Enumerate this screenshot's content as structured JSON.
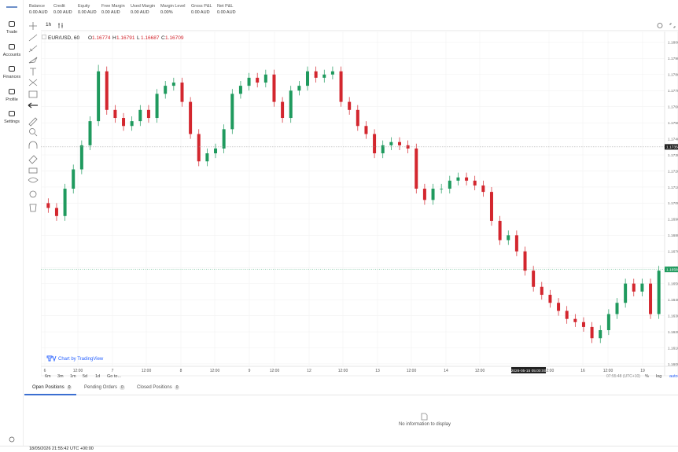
{
  "account": {
    "fields": [
      {
        "label": "Balance",
        "value": "0.00 AUD"
      },
      {
        "label": "Credit",
        "value": "0.00 AUD"
      },
      {
        "label": "Equity",
        "value": "0.00 AUD"
      },
      {
        "label": "Free Margin",
        "value": "0.00 AUD"
      },
      {
        "label": "Used Margin",
        "value": "0.00 AUD"
      },
      {
        "label": "Margin Level",
        "value": "0.00%"
      },
      {
        "label": "Gross P&L",
        "value": "0.00 AUD"
      },
      {
        "label": "Net P&L",
        "value": "0.00 AUD"
      }
    ]
  },
  "nav": [
    "Trade",
    "Accounts",
    "Finances",
    "Profile",
    "Settings"
  ],
  "toolbar": {
    "interval": "1h"
  },
  "chart_data": {
    "type": "candlestick",
    "symbol": "EUR/USD, 60",
    "ohlc": [
      {
        "key": "O",
        "value": 1.16774
      },
      {
        "key": "H",
        "value": 1.16791
      },
      {
        "key": "L",
        "value": 1.16687
      },
      {
        "key": "C",
        "value": 1.16709
      }
    ],
    "up_color": "#1f9a5e",
    "down_color": "#d3262e",
    "grid": true,
    "ylim": [
      1.1599,
      1.18068
    ],
    "yticks": [
      {
        "value": 1.16,
        "label": "1.16000"
      },
      {
        "value": 1.161,
        "label": "1.16100"
      },
      {
        "value": 1.162,
        "label": "1.16200"
      },
      {
        "value": 1.163,
        "label": "1.16300"
      },
      {
        "value": 1.164,
        "label": "1.16400"
      },
      {
        "value": 1.165,
        "label": "1.16500"
      },
      {
        "value": 1.166,
        "label": "1.16600"
      },
      {
        "value": 1.167,
        "label": "1.16700"
      },
      {
        "value": 1.168,
        "label": "1.16800"
      },
      {
        "value": 1.169,
        "label": "1.16900"
      },
      {
        "value": 1.17,
        "label": "1.17000"
      },
      {
        "value": 1.171,
        "label": "1.17100"
      },
      {
        "value": 1.172,
        "label": "1.17200"
      },
      {
        "value": 1.173,
        "label": "1.17300"
      },
      {
        "value": 1.174,
        "label": "1.17400"
      },
      {
        "value": 1.175,
        "label": "1.17500"
      },
      {
        "value": 1.176,
        "label": "1.17600"
      },
      {
        "value": 1.177,
        "label": "1.17700"
      },
      {
        "value": 1.178,
        "label": "1.17800"
      },
      {
        "value": 1.179,
        "label": "1.17900"
      },
      {
        "value": 1.18,
        "label": "1.18000"
      }
    ],
    "crosshair_price": {
      "value": 1.1735,
      "label": "1.17350"
    },
    "last_price": {
      "value": 1.16588,
      "label": "1.16588"
    },
    "crosshair_time": "2026-05-15 05:00:00",
    "xlabels": [
      "6",
      "12:00",
      "7",
      "12:00",
      "8",
      "12:00",
      "9",
      "12:00",
      "12",
      "12:00",
      "13",
      "12:00",
      "14",
      "12:00",
      "12:00",
      "16",
      "12:00",
      "19"
    ],
    "candles": [
      [
        1.17,
        1.1703,
        1.1694,
        1.1697
      ],
      [
        1.1697,
        1.17,
        1.1689,
        1.1692
      ],
      [
        1.1692,
        1.1712,
        1.1689,
        1.1709
      ],
      [
        1.1709,
        1.1724,
        1.1706,
        1.1721
      ],
      [
        1.1721,
        1.1739,
        1.1718,
        1.1736
      ],
      [
        1.1736,
        1.1754,
        1.1733,
        1.1751
      ],
      [
        1.1751,
        1.1786,
        1.1748,
        1.1782
      ],
      [
        1.1782,
        1.1785,
        1.1755,
        1.1758
      ],
      [
        1.1758,
        1.1761,
        1.175,
        1.1753
      ],
      [
        1.1753,
        1.1756,
        1.1745,
        1.1748
      ],
      [
        1.1748,
        1.1754,
        1.1745,
        1.1751
      ],
      [
        1.1751,
        1.1761,
        1.1748,
        1.1758
      ],
      [
        1.1758,
        1.1761,
        1.175,
        1.1753
      ],
      [
        1.1753,
        1.1771,
        1.175,
        1.1768
      ],
      [
        1.1768,
        1.1776,
        1.1765,
        1.1773
      ],
      [
        1.1773,
        1.1778,
        1.177,
        1.1775
      ],
      [
        1.1775,
        1.1778,
        1.176,
        1.1763
      ],
      [
        1.1763,
        1.1766,
        1.174,
        1.1743
      ],
      [
        1.1743,
        1.1746,
        1.1723,
        1.1726
      ],
      [
        1.1726,
        1.1734,
        1.1723,
        1.1731
      ],
      [
        1.1731,
        1.1737,
        1.1728,
        1.1734
      ],
      [
        1.1734,
        1.1749,
        1.1731,
        1.1746
      ],
      [
        1.1746,
        1.1771,
        1.1743,
        1.1768
      ],
      [
        1.1768,
        1.1776,
        1.1765,
        1.1773
      ],
      [
        1.1773,
        1.1781,
        1.177,
        1.1778
      ],
      [
        1.1778,
        1.1781,
        1.1772,
        1.1775
      ],
      [
        1.1775,
        1.1783,
        1.1772,
        1.178
      ],
      [
        1.178,
        1.1783,
        1.176,
        1.1763
      ],
      [
        1.1763,
        1.1766,
        1.175,
        1.1753
      ],
      [
        1.1753,
        1.1773,
        1.175,
        1.177
      ],
      [
        1.177,
        1.1776,
        1.1767,
        1.1773
      ],
      [
        1.1773,
        1.1785,
        1.177,
        1.1782
      ],
      [
        1.1782,
        1.1785,
        1.1775,
        1.1778
      ],
      [
        1.1778,
        1.1783,
        1.1775,
        1.178
      ],
      [
        1.178,
        1.1785,
        1.1777,
        1.1782
      ],
      [
        1.1782,
        1.1785,
        1.176,
        1.1763
      ],
      [
        1.1763,
        1.1766,
        1.1755,
        1.1758
      ],
      [
        1.1758,
        1.1761,
        1.1745,
        1.1748
      ],
      [
        1.1748,
        1.1751,
        1.174,
        1.1743
      ],
      [
        1.1743,
        1.1746,
        1.1728,
        1.1731
      ],
      [
        1.1731,
        1.1739,
        1.1728,
        1.1736
      ],
      [
        1.1736,
        1.1741,
        1.1733,
        1.1738
      ],
      [
        1.1738,
        1.1741,
        1.1733,
        1.1736
      ],
      [
        1.1736,
        1.1739,
        1.1731,
        1.1734
      ],
      [
        1.1734,
        1.1737,
        1.1706,
        1.1709
      ],
      [
        1.1709,
        1.1712,
        1.1699,
        1.1702
      ],
      [
        1.1702,
        1.1712,
        1.1699,
        1.1709
      ],
      [
        1.1709,
        1.1712,
        1.1706,
        1.1709
      ],
      [
        1.1709,
        1.1717,
        1.1706,
        1.1714
      ],
      [
        1.1714,
        1.1719,
        1.1711,
        1.1716
      ],
      [
        1.1716,
        1.1719,
        1.1711,
        1.1714
      ],
      [
        1.1714,
        1.1717,
        1.1708,
        1.1711
      ],
      [
        1.1711,
        1.1714,
        1.1704,
        1.1707
      ],
      [
        1.1707,
        1.171,
        1.1686,
        1.1689
      ],
      [
        1.1689,
        1.1692,
        1.1674,
        1.1677
      ],
      [
        1.1677,
        1.1683,
        1.1674,
        1.168
      ],
      [
        1.168,
        1.1683,
        1.1667,
        1.167
      ],
      [
        1.167,
        1.1673,
        1.1655,
        1.1658
      ],
      [
        1.1658,
        1.1661,
        1.1645,
        1.1648
      ],
      [
        1.1648,
        1.1651,
        1.164,
        1.1643
      ],
      [
        1.1643,
        1.1646,
        1.1635,
        1.1638
      ],
      [
        1.1638,
        1.1641,
        1.163,
        1.1633
      ],
      [
        1.1633,
        1.1636,
        1.1625,
        1.1628
      ],
      [
        1.1628,
        1.1631,
        1.1623,
        1.1626
      ],
      [
        1.1626,
        1.1629,
        1.162,
        1.1623
      ],
      [
        1.1623,
        1.1626,
        1.1613,
        1.1616
      ],
      [
        1.1616,
        1.1624,
        1.1613,
        1.1621
      ],
      [
        1.1621,
        1.1634,
        1.1618,
        1.1631
      ],
      [
        1.1631,
        1.1641,
        1.1628,
        1.1638
      ],
      [
        1.1638,
        1.1653,
        1.1635,
        1.165
      ],
      [
        1.165,
        1.1653,
        1.1642,
        1.1645
      ],
      [
        1.1645,
        1.1653,
        1.1642,
        1.165
      ],
      [
        1.165,
        1.1653,
        1.1628,
        1.1631
      ],
      [
        1.1631,
        1.1661,
        1.1628,
        1.1658
      ]
    ],
    "attribution": "Chart by TradingView"
  },
  "chart_footer": {
    "ranges": [
      "6m",
      "3m",
      "1m",
      "5d",
      "1d",
      "Go to..."
    ],
    "clock": "07:55:48 (UTC+10)",
    "options": [
      "%",
      "log",
      "auto"
    ]
  },
  "tabs": [
    {
      "label": "Open Positions",
      "count": 0
    },
    {
      "label": "Pending Orders",
      "count": 0
    },
    {
      "label": "Closed Positions",
      "count": 0
    }
  ],
  "empty_message": "No information to display",
  "status": {
    "datetime": "18/05/2026 21:55:42",
    "timezone": "UTC +00:00"
  }
}
